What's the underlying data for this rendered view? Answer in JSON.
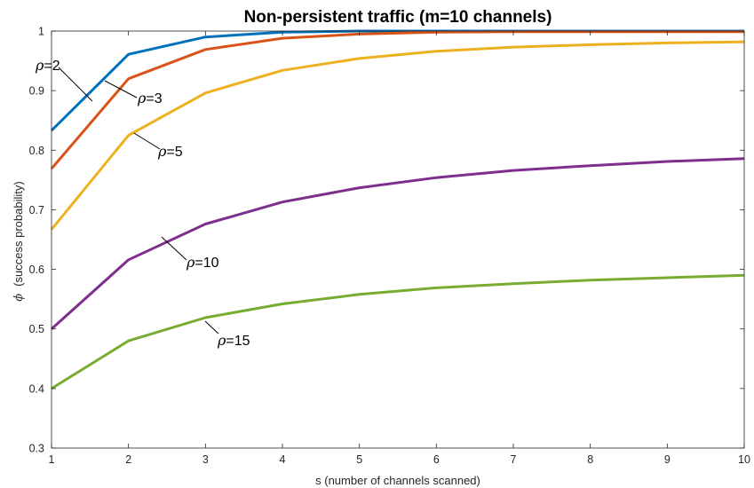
{
  "chart_data": {
    "type": "line",
    "title": "Non-persistent traffic (m=10 channels)",
    "xlabel": "s  (number of channels scanned)",
    "ylabel_symbol": "ϕ",
    "ylabel": "(success probability)",
    "xlim": [
      1,
      10
    ],
    "ylim": [
      0.3,
      1
    ],
    "xticks": [
      "1",
      "2",
      "3",
      "4",
      "5",
      "6",
      "7",
      "8",
      "9",
      "10"
    ],
    "yticks": [
      "0.3",
      "0.4",
      "0.5",
      "0.6",
      "0.7",
      "0.8",
      "0.9",
      "1"
    ],
    "grid": false,
    "x": [
      1,
      2,
      3,
      4,
      5,
      6,
      7,
      8,
      9,
      10
    ],
    "series": [
      {
        "color": "#0072BD",
        "values": [
          0.833,
          0.961,
          0.99,
          0.998,
          1.0,
          1.0,
          1.0,
          1.0,
          1.0,
          1.0
        ]
      },
      {
        "color": "#D95319",
        "values": [
          0.769,
          0.92,
          0.969,
          0.988,
          0.995,
          0.998,
          0.999,
          0.999,
          0.999,
          0.999
        ]
      },
      {
        "color": "#EDB120",
        "values": [
          0.667,
          0.825,
          0.896,
          0.934,
          0.954,
          0.966,
          0.973,
          0.977,
          0.98,
          0.982
        ]
      },
      {
        "color": "#7E2F8E",
        "values": [
          0.5,
          0.616,
          0.676,
          0.713,
          0.737,
          0.754,
          0.766,
          0.774,
          0.781,
          0.786
        ]
      },
      {
        "color": "#77AC30",
        "values": [
          0.4,
          0.48,
          0.519,
          0.542,
          0.558,
          0.569,
          0.576,
          0.582,
          0.586,
          0.59
        ]
      }
    ],
    "annotations": [
      {
        "symbol": "ρ",
        "text": "=2"
      },
      {
        "symbol": "ρ",
        "text": "=3"
      },
      {
        "symbol": "ρ",
        "text": "=5"
      },
      {
        "symbol": "ρ",
        "text": "=10"
      },
      {
        "symbol": "ρ",
        "text": "=15"
      }
    ]
  }
}
